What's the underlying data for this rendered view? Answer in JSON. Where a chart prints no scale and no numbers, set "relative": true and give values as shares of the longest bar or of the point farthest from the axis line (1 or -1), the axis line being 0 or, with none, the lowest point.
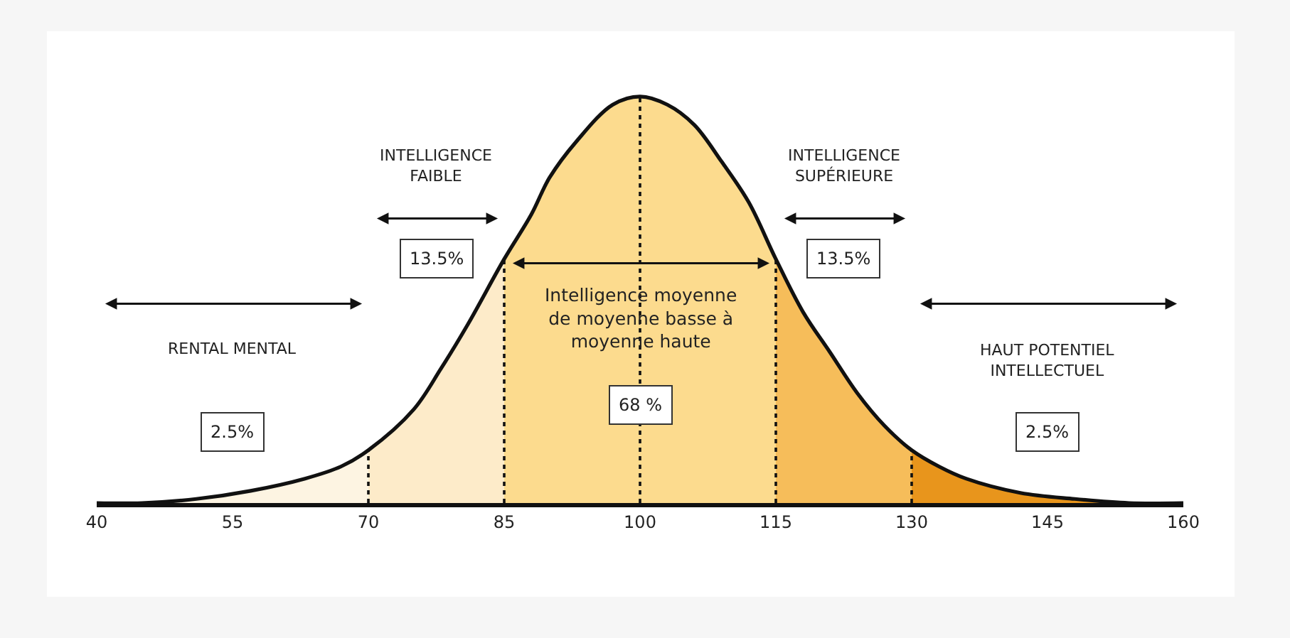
{
  "chart_data": {
    "type": "area",
    "relative": true,
    "tick_labels": "x",
    "series": [
      {
        "color": "#fdf4e2",
        "x": [
          40,
          45,
          51,
          57,
          63,
          67,
          70
        ],
        "values": [
          0,
          0,
          0.01,
          0.03,
          0.06,
          0.09,
          0.13
        ]
      },
      {
        "color": "#fdebc9",
        "x": [
          70,
          75,
          78,
          81,
          85
        ],
        "values": [
          0.13,
          0.23,
          0.33,
          0.44,
          0.6
        ]
      },
      {
        "color": "#fcdb8e",
        "x": [
          85,
          88,
          90,
          93,
          97,
          100,
          103,
          106,
          109,
          112,
          115
        ],
        "values": [
          0.6,
          0.71,
          0.8,
          0.89,
          0.98,
          1,
          0.98,
          0.93,
          0.84,
          0.74,
          0.6
        ]
      },
      {
        "color": "#f6bd5a",
        "x": [
          115,
          118,
          121,
          124,
          127,
          130
        ],
        "values": [
          0.6,
          0.47,
          0.37,
          0.27,
          0.19,
          0.13
        ]
      },
      {
        "color": "#e8951c",
        "x": [
          130,
          133,
          136,
          142,
          148,
          154,
          160
        ],
        "values": [
          0.13,
          0.09,
          0.06,
          0.025,
          0.01,
          0,
          0
        ]
      },
      {
        "type": "line",
        "color": "#111111",
        "x": [
          40,
          45,
          51,
          57,
          63,
          67,
          70,
          75,
          78,
          81,
          85,
          88,
          90,
          93,
          97,
          100,
          103,
          106,
          109,
          112,
          115,
          118,
          121,
          124,
          127,
          130,
          133,
          136,
          142,
          148,
          154,
          160
        ],
        "values": [
          0,
          0,
          0.01,
          0.03,
          0.06,
          0.09,
          0.13,
          0.23,
          0.33,
          0.44,
          0.6,
          0.71,
          0.8,
          0.89,
          0.98,
          1,
          0.98,
          0.93,
          0.84,
          0.74,
          0.6,
          0.47,
          0.37,
          0.27,
          0.19,
          0.13,
          0.09,
          0.06,
          0.025,
          0.01,
          0,
          0
        ]
      }
    ],
    "xlim": [
      40,
      160
    ],
    "xticks": [
      40,
      55,
      70,
      85,
      100,
      115,
      130,
      145,
      160
    ],
    "ref_lines": [
      {
        "axis": "x",
        "value": 70,
        "line_style": "dashed",
        "color": "#111111"
      },
      {
        "axis": "x",
        "value": 85,
        "line_style": "dashed",
        "color": "#111111"
      },
      {
        "axis": "x",
        "value": 100,
        "line_style": "dashed",
        "color": "#111111"
      },
      {
        "axis": "x",
        "value": 115,
        "line_style": "dashed",
        "color": "#111111"
      },
      {
        "axis": "x",
        "value": 130,
        "line_style": "dashed",
        "color": "#111111"
      }
    ],
    "annotations": [
      "RENTAL MENTAL",
      "2.5%",
      "INTELLIGENCE\nFAIBLE",
      "13.5%",
      "Intelligence moyenne\nde moyenne basse à\nmoyenne haute",
      "68 %",
      "INTELLIGENCE\nSUPÉRIEURE",
      "13.5%",
      "HAUT POTENTIEL\nINTELLECTUEL",
      "2.5%"
    ]
  }
}
